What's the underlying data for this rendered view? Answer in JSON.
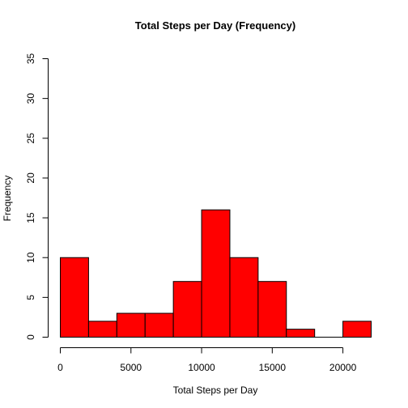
{
  "chart_data": {
    "type": "bar",
    "title": "Total Steps per Day (Frequency)",
    "xlabel": "Total Steps per Day",
    "ylabel": "Frequency",
    "bin_edges": [
      0,
      2000,
      4000,
      6000,
      8000,
      10000,
      12000,
      14000,
      16000,
      18000,
      20000,
      22000
    ],
    "values": [
      10,
      2,
      3,
      3,
      7,
      16,
      10,
      7,
      1,
      0,
      2
    ],
    "xlim": [
      0,
      22000
    ],
    "ylim": [
      0,
      35
    ],
    "x_ticks": [
      0,
      5000,
      10000,
      15000,
      20000
    ],
    "y_ticks": [
      0,
      5,
      10,
      15,
      20,
      25,
      30,
      35
    ],
    "bar_color": "#ff0000",
    "bar_stroke": "#000000",
    "grid": false,
    "legend": "none"
  }
}
